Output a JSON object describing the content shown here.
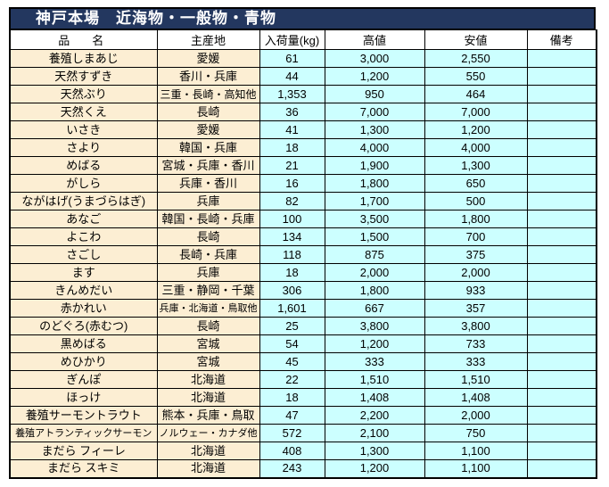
{
  "title": "神戸本場　近海物・一般物・青物",
  "colors": {
    "title_bg": "#23375F",
    "title_text": "#FFFFFF",
    "header_bg": "#FFFFFF",
    "name_origin_bg": "#FCEED3",
    "value_bg": "#CCFFFF",
    "border": "#000000"
  },
  "table": {
    "headers": [
      "品　名",
      "主産地",
      "入荷量(kg)",
      "高値",
      "安値",
      "備考"
    ],
    "rows": [
      {
        "name": "養殖しまあじ",
        "origin": "愛媛",
        "qty": "61",
        "high": "3,000",
        "low": "2,550",
        "remark": ""
      },
      {
        "name": "天然すずき",
        "origin": "香川・兵庫",
        "qty": "44",
        "high": "1,200",
        "low": "550",
        "remark": ""
      },
      {
        "name": "天然ぶり",
        "origin": "三重・長崎・高知他",
        "qty": "1,353",
        "high": "950",
        "low": "464",
        "remark": ""
      },
      {
        "name": "天然くえ",
        "origin": "長崎",
        "qty": "36",
        "high": "7,000",
        "low": "7,000",
        "remark": ""
      },
      {
        "name": "いさき",
        "origin": "愛媛",
        "qty": "41",
        "high": "1,300",
        "low": "1,200",
        "remark": ""
      },
      {
        "name": "さより",
        "origin": "韓国・兵庫",
        "qty": "18",
        "high": "4,000",
        "low": "4,000",
        "remark": ""
      },
      {
        "name": "めばる",
        "origin": "宮城・兵庫・香川",
        "qty": "21",
        "high": "1,900",
        "low": "1,300",
        "remark": ""
      },
      {
        "name": "がしら",
        "origin": "兵庫・香川",
        "qty": "16",
        "high": "1,800",
        "low": "650",
        "remark": ""
      },
      {
        "name": "ながはげ(うまづらはぎ)",
        "origin": "兵庫",
        "qty": "82",
        "high": "1,700",
        "low": "500",
        "remark": ""
      },
      {
        "name": "あなご",
        "origin": "韓国・長崎・兵庫",
        "qty": "100",
        "high": "3,500",
        "low": "1,800",
        "remark": ""
      },
      {
        "name": "よこわ",
        "origin": "長崎",
        "qty": "134",
        "high": "1,500",
        "low": "700",
        "remark": ""
      },
      {
        "name": "さごし",
        "origin": "長崎・兵庫",
        "qty": "118",
        "high": "875",
        "low": "375",
        "remark": ""
      },
      {
        "name": "ます",
        "origin": "兵庫",
        "qty": "18",
        "high": "2,000",
        "low": "2,000",
        "remark": ""
      },
      {
        "name": "きんめだい",
        "origin": "三重・静岡・千葉",
        "qty": "306",
        "high": "1,800",
        "low": "933",
        "remark": ""
      },
      {
        "name": "赤かれい",
        "origin": "兵庫・北海道・鳥取他",
        "qty": "1,601",
        "high": "667",
        "low": "357",
        "remark": ""
      },
      {
        "name": "のどぐろ(赤むつ)",
        "origin": "長崎",
        "qty": "25",
        "high": "3,800",
        "low": "3,800",
        "remark": ""
      },
      {
        "name": "黒めばる",
        "origin": "宮城",
        "qty": "54",
        "high": "1,200",
        "low": "733",
        "remark": ""
      },
      {
        "name": "めひかり",
        "origin": "宮城",
        "qty": "45",
        "high": "333",
        "low": "333",
        "remark": ""
      },
      {
        "name": "ぎんぽ",
        "origin": "北海道",
        "qty": "22",
        "high": "1,510",
        "low": "1,510",
        "remark": ""
      },
      {
        "name": "ほっけ",
        "origin": "北海道",
        "qty": "18",
        "high": "1,408",
        "low": "1,408",
        "remark": ""
      },
      {
        "name": "養殖サーモントラウト",
        "origin": "熊本・兵庫・鳥取",
        "qty": "47",
        "high": "2,200",
        "low": "2,000",
        "remark": ""
      },
      {
        "name": "養殖アトランティックサーモン",
        "origin": "ノルウェー・カナダ他",
        "qty": "572",
        "high": "2,100",
        "low": "750",
        "remark": ""
      },
      {
        "name": "まだら フィーレ",
        "origin": "北海道",
        "qty": "408",
        "high": "1,300",
        "low": "1,100",
        "remark": ""
      },
      {
        "name": "まだら スキミ",
        "origin": "北海道",
        "qty": "243",
        "high": "1,200",
        "low": "1,100",
        "remark": ""
      }
    ]
  }
}
